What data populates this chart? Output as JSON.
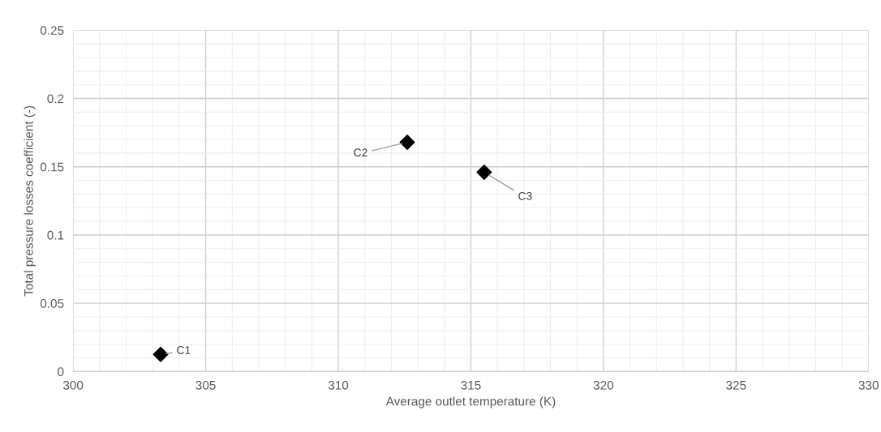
{
  "chart_data": {
    "type": "scatter",
    "xlabel": "Average outlet temperature (K)",
    "ylabel": "Total pressure losses coefficient (-)",
    "x": [
      303.3,
      312.6,
      315.5
    ],
    "series": [
      {
        "color": "#000000",
        "values": [
          0.0125,
          0.168,
          0.146
        ]
      }
    ],
    "marker": "diamond",
    "xlim": [
      300,
      330
    ],
    "xticks": [
      300,
      305,
      310,
      315,
      320,
      325,
      330
    ],
    "ylim": [
      0,
      0.25
    ],
    "yticks": [
      0,
      0.05,
      0.1,
      0.15,
      0.2,
      0.25
    ],
    "grid": true,
    "annotations": [
      {
        "text": "C1",
        "x": 303.3,
        "y": 0.0125
      },
      {
        "text": "C2",
        "x": 312.6,
        "y": 0.168
      },
      {
        "text": "C3",
        "x": 315.5,
        "y": 0.146
      }
    ]
  }
}
